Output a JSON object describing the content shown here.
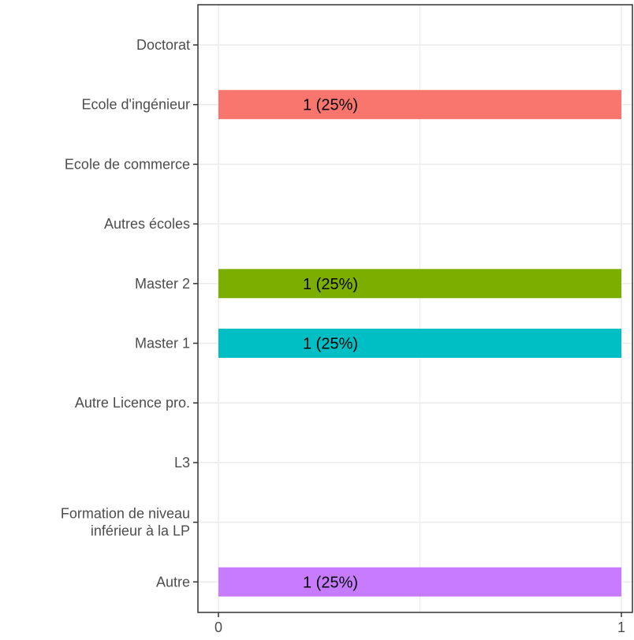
{
  "chart_data": {
    "type": "bar",
    "orientation": "horizontal",
    "categories": [
      "Doctorat",
      "Ecole d'ingénieur",
      "Ecole de commerce",
      "Autres écoles",
      "Master 2",
      "Master 1",
      "Autre Licence pro.",
      "L3",
      "Formation de niveau\ninférieur à la LP",
      "Autre"
    ],
    "values": [
      0,
      1,
      0,
      0,
      1,
      1,
      0,
      0,
      0,
      1
    ],
    "bar_labels": [
      "",
      "1 (25%)",
      "",
      "",
      "1 (25%)",
      "1 (25%)",
      "",
      "",
      "",
      "1 (25%)"
    ],
    "colors": [
      "",
      "#F8766D",
      "",
      "",
      "#7CAE00",
      "#00BFC4",
      "",
      "",
      "",
      "#C77CFF"
    ],
    "xlim": [
      0,
      1
    ],
    "x_ticks": [
      0,
      1
    ],
    "x_tick_labels": [
      "0",
      "1"
    ],
    "title": "",
    "xlabel": "",
    "ylabel": "",
    "grid": true,
    "legend": "none"
  }
}
